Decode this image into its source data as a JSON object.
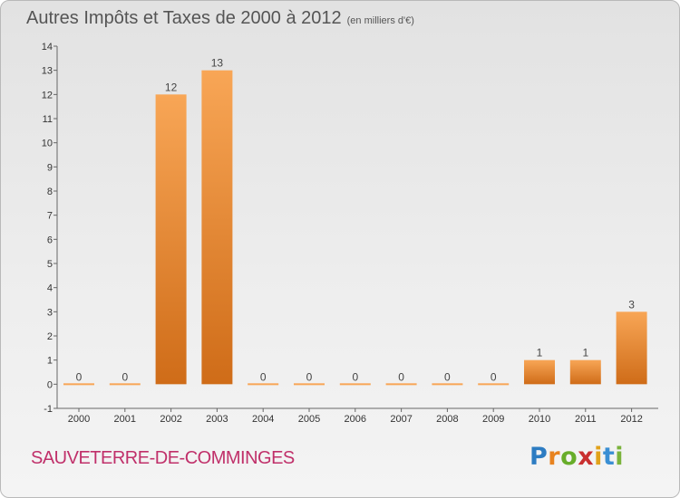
{
  "header": {
    "title": "Autres Impôts et Taxes de 2000 à 2012",
    "unit": "(en milliers d'€)"
  },
  "footer": {
    "commune": "SAUVETERRE-DE-COMMINGES",
    "brand": "Proxiti"
  },
  "colors": {
    "bar_top": "#f8a656",
    "bar_bottom": "#cf6c18",
    "commune_text": "#c0306a"
  },
  "chart_data": {
    "type": "bar",
    "title": "Autres Impôts et Taxes de 2000 à 2012",
    "subtitle": "(en milliers d'€)",
    "xlabel": "",
    "ylabel": "",
    "categories": [
      "2000",
      "2001",
      "2002",
      "2003",
      "2004",
      "2005",
      "2006",
      "2007",
      "2008",
      "2009",
      "2010",
      "2011",
      "2012"
    ],
    "values": [
      0,
      0,
      12,
      13,
      0,
      0,
      0,
      0,
      0,
      0,
      1,
      1,
      3
    ],
    "data_labels": [
      "0",
      "0",
      "12",
      "13",
      "0",
      "0",
      "0",
      "0",
      "0",
      "0",
      "1",
      "1",
      "3"
    ],
    "ylim": [
      -1,
      14
    ],
    "yticks": [
      -1,
      0,
      1,
      2,
      3,
      4,
      5,
      6,
      7,
      8,
      9,
      10,
      11,
      12,
      13,
      14
    ],
    "grid": false,
    "legend": "none"
  }
}
